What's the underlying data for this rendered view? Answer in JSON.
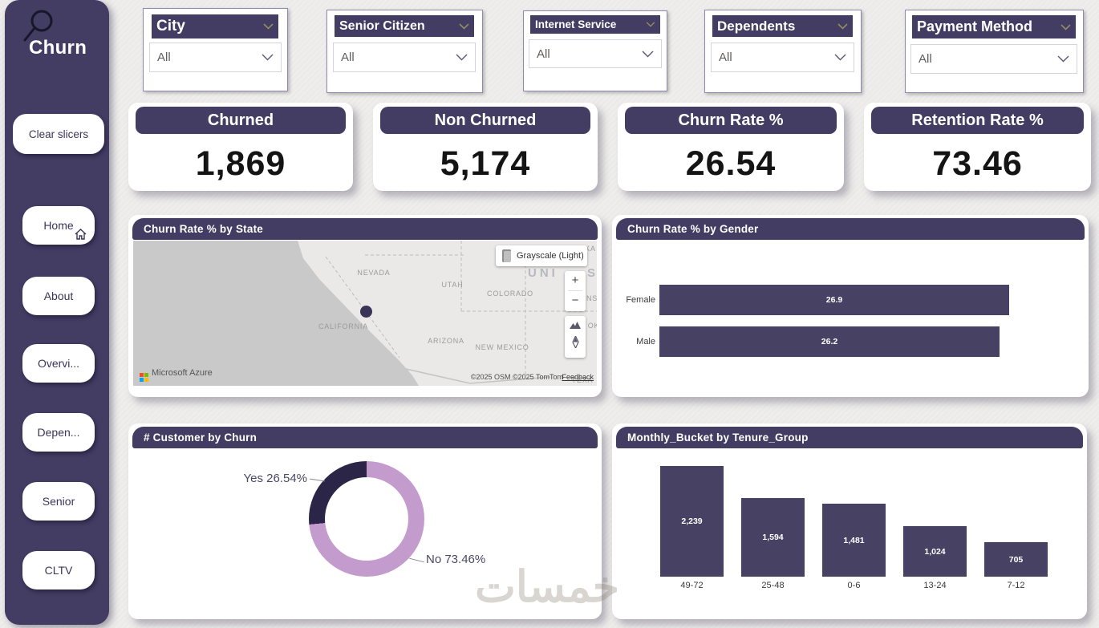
{
  "theme": {
    "accent": "#433C63",
    "bar_color": "#474163",
    "background": "#ECEBE9",
    "chevron_olive": "#8E8E62",
    "donut_yes_color": "#2B2547",
    "donut_no_color": "#C49BCD"
  },
  "logo": {
    "text": "Churn"
  },
  "sidebar": {
    "clear_button": "Clear slicers",
    "nav": [
      {
        "label": "Home"
      },
      {
        "label": "About"
      },
      {
        "label": "Overvi..."
      },
      {
        "label": "Depen..."
      },
      {
        "label": "Senior"
      },
      {
        "label": "CLTV"
      }
    ]
  },
  "slicers": [
    {
      "title": "City",
      "value": "All"
    },
    {
      "title": "Senior Citizen",
      "value": "All"
    },
    {
      "title": "Internet Service",
      "value": "All"
    },
    {
      "title": "Dependents",
      "value": "All"
    },
    {
      "title": "Payment Method",
      "value": "All"
    }
  ],
  "kpis": [
    {
      "title": "Churned",
      "value": "1,869"
    },
    {
      "title": "Non Churned",
      "value": "5,174"
    },
    {
      "title": "Churn Rate %",
      "value": "26.54"
    },
    {
      "title": "Retention Rate %",
      "value": "73.46"
    }
  ],
  "map": {
    "style_button": "Grayscale (Light)",
    "zoom_in": "+",
    "zoom_out": "−",
    "attribution": "Microsoft Azure",
    "copyright": "©2025 OSM  ©2025 TomTom",
    "feedback": "Feedback",
    "labels": {
      "nevada": "NEVADA",
      "utah": "UTAH",
      "colorado": "COLORADO",
      "california": "CALIFORNIA",
      "arizona": "ARIZONA",
      "new_mexico": "NEW MEXICO",
      "united_partial": "UNI",
      "s_partial": "S",
      "ka_partial": "KA",
      "ns_partial": "NS",
      "ok_partial": "OK",
      "texa_partial": "TEXA"
    }
  },
  "watermark": "خمسات",
  "chart_data": [
    {
      "id": "state_map",
      "type": "map",
      "title": "Churn Rate % by State",
      "points": [
        {
          "label": "California"
        }
      ]
    },
    {
      "id": "gender",
      "type": "bar",
      "orientation": "horizontal",
      "title": "Churn Rate % by Gender",
      "categories": [
        "Female",
        "Male"
      ],
      "values": [
        26.9,
        26.2
      ],
      "value_labels": [
        "26.9",
        "26.2"
      ],
      "xlim": [
        0,
        27.05
      ],
      "grid": false,
      "legend": false
    },
    {
      "id": "churn_donut",
      "type": "pie",
      "title": "# Customer by Churn",
      "categories": [
        "Yes",
        "No"
      ],
      "values": [
        26.54,
        73.46
      ],
      "labels": [
        "Yes 26.54%",
        "No 73.46%"
      ],
      "colors": [
        "#2B2547",
        "#C49BCD"
      ]
    },
    {
      "id": "tenure",
      "type": "bar",
      "orientation": "vertical",
      "title": "Monthly_Bucket by Tenure_Group",
      "categories": [
        "49-72",
        "25-48",
        "0-6",
        "13-24",
        "7-12"
      ],
      "values": [
        2239,
        1594,
        1481,
        1024,
        705
      ],
      "value_labels": [
        "2,239",
        "1,594",
        "1,481",
        "1,024",
        "705"
      ],
      "ylim": [
        0,
        2239
      ],
      "grid": false
    }
  ]
}
